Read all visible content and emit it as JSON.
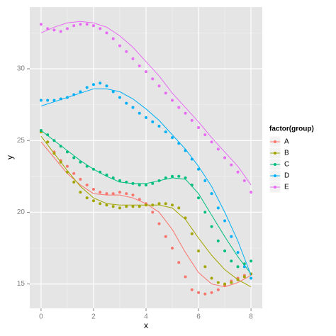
{
  "chart_data": {
    "type": "scatter",
    "x_label": "x",
    "y_label": "y",
    "legend_title": "factor(group)",
    "x": [
      0,
      0.25,
      0.5,
      0.75,
      1,
      1.25,
      1.5,
      1.75,
      2,
      2.25,
      2.5,
      2.75,
      3,
      3.25,
      3.5,
      3.75,
      4,
      4.25,
      4.5,
      4.75,
      5,
      5.25,
      5.5,
      5.75,
      6,
      6.25,
      6.5,
      6.75,
      7,
      7.25,
      7.5,
      7.75,
      8
    ],
    "smooth_x": [
      0,
      0.5,
      1,
      1.5,
      2,
      2.5,
      3,
      3.5,
      4,
      4.5,
      5,
      5.5,
      6,
      6.5,
      7,
      7.5,
      8
    ],
    "series": [
      {
        "name": "A",
        "color": "#F8766D",
        "values": [
          25.6,
          24.9,
          24.2,
          23.6,
          23.2,
          22.7,
          22.3,
          21.9,
          21.6,
          21.4,
          21.3,
          21.3,
          21.4,
          21.3,
          21.2,
          20.9,
          20.6,
          20.0,
          19.2,
          18.3,
          17.5,
          16.5,
          15.5,
          14.6,
          14.4,
          14.3,
          14.4,
          14.6,
          14.9,
          15.2,
          15.4,
          15.6,
          15.7
        ],
        "smooth": [
          24.9,
          23.8,
          22.7,
          21.9,
          21.3,
          21.2,
          21.2,
          21.0,
          20.6,
          20.0,
          18.8,
          17.2,
          15.8,
          15.0,
          14.8,
          15.1,
          15.6
        ]
      },
      {
        "name": "B",
        "color": "#A3A500",
        "values": [
          25.6,
          24.9,
          24.1,
          23.5,
          22.8,
          22.1,
          21.4,
          21.0,
          20.8,
          20.6,
          20.5,
          20.4,
          20.3,
          20.4,
          20.4,
          20.4,
          20.5,
          20.5,
          20.6,
          20.6,
          20.5,
          20.3,
          19.6,
          18.5,
          17.3,
          16.2,
          15.4,
          15.1,
          15.0,
          15.1,
          15.3,
          15.5,
          15.7
        ],
        "smooth": [
          25.3,
          24.1,
          22.9,
          21.8,
          21.0,
          20.6,
          20.5,
          20.5,
          20.5,
          20.5,
          20.3,
          19.5,
          18.2,
          17.0,
          16.0,
          15.3,
          14.8
        ]
      },
      {
        "name": "C",
        "color": "#00BF7D",
        "values": [
          25.7,
          25.4,
          25.0,
          24.6,
          24.2,
          23.8,
          23.5,
          23.2,
          23.0,
          22.8,
          22.6,
          22.4,
          22.2,
          22.1,
          22.0,
          21.9,
          21.9,
          22.0,
          22.2,
          22.4,
          22.5,
          22.5,
          22.4,
          21.9,
          21.0,
          20.0,
          19.0,
          18.0,
          17.3,
          16.6,
          16.2,
          16.4,
          16.6
        ],
        "smooth": [
          25.7,
          25.0,
          24.3,
          23.6,
          23.0,
          22.5,
          22.1,
          22.0,
          22.0,
          22.2,
          22.4,
          22.3,
          21.3,
          19.8,
          18.3,
          16.9,
          15.7
        ]
      },
      {
        "name": "D",
        "color": "#00B0F6",
        "values": [
          27.8,
          27.8,
          27.8,
          27.9,
          28.0,
          28.2,
          28.4,
          28.7,
          28.9,
          29.0,
          28.8,
          28.4,
          28.0,
          27.6,
          27.3,
          26.9,
          26.6,
          26.3,
          26.0,
          25.6,
          25.2,
          24.8,
          24.3,
          23.7,
          23.0,
          22.2,
          21.3,
          20.3,
          19.4,
          18.3,
          17.2,
          16.2,
          15.4
        ],
        "smooth": [
          27.4,
          27.7,
          28.0,
          28.3,
          28.6,
          28.6,
          28.4,
          27.9,
          27.2,
          26.4,
          25.4,
          24.4,
          23.2,
          21.8,
          20.0,
          18.0,
          15.6
        ]
      },
      {
        "name": "E",
        "color": "#E76BF3",
        "values": [
          33.1,
          32.8,
          32.7,
          32.6,
          32.8,
          33.0,
          33.1,
          33.1,
          33.0,
          32.8,
          32.5,
          32.1,
          31.6,
          31.2,
          30.7,
          30.2,
          29.8,
          29.3,
          28.8,
          28.3,
          27.8,
          27.3,
          26.9,
          26.4,
          25.9,
          25.4,
          24.9,
          24.4,
          23.8,
          23.3,
          22.8,
          22.2,
          21.4
        ],
        "smooth": [
          32.5,
          32.9,
          33.2,
          33.3,
          33.2,
          32.9,
          32.3,
          31.5,
          30.5,
          29.5,
          28.3,
          27.3,
          26.3,
          25.2,
          24.2,
          23.2,
          21.9
        ]
      }
    ],
    "xlim": [
      -0.43,
      8.43
    ],
    "ylim": [
      13.3,
      34.3
    ],
    "xticks": [
      0,
      2,
      4,
      6,
      8
    ],
    "yticks": [
      15,
      20,
      25,
      30
    ],
    "x_minor_grid": [
      1,
      3,
      5,
      7
    ],
    "y_minor_grid": [
      17.5,
      22.5,
      27.5,
      32.5
    ],
    "grid": true,
    "legend": "right"
  }
}
